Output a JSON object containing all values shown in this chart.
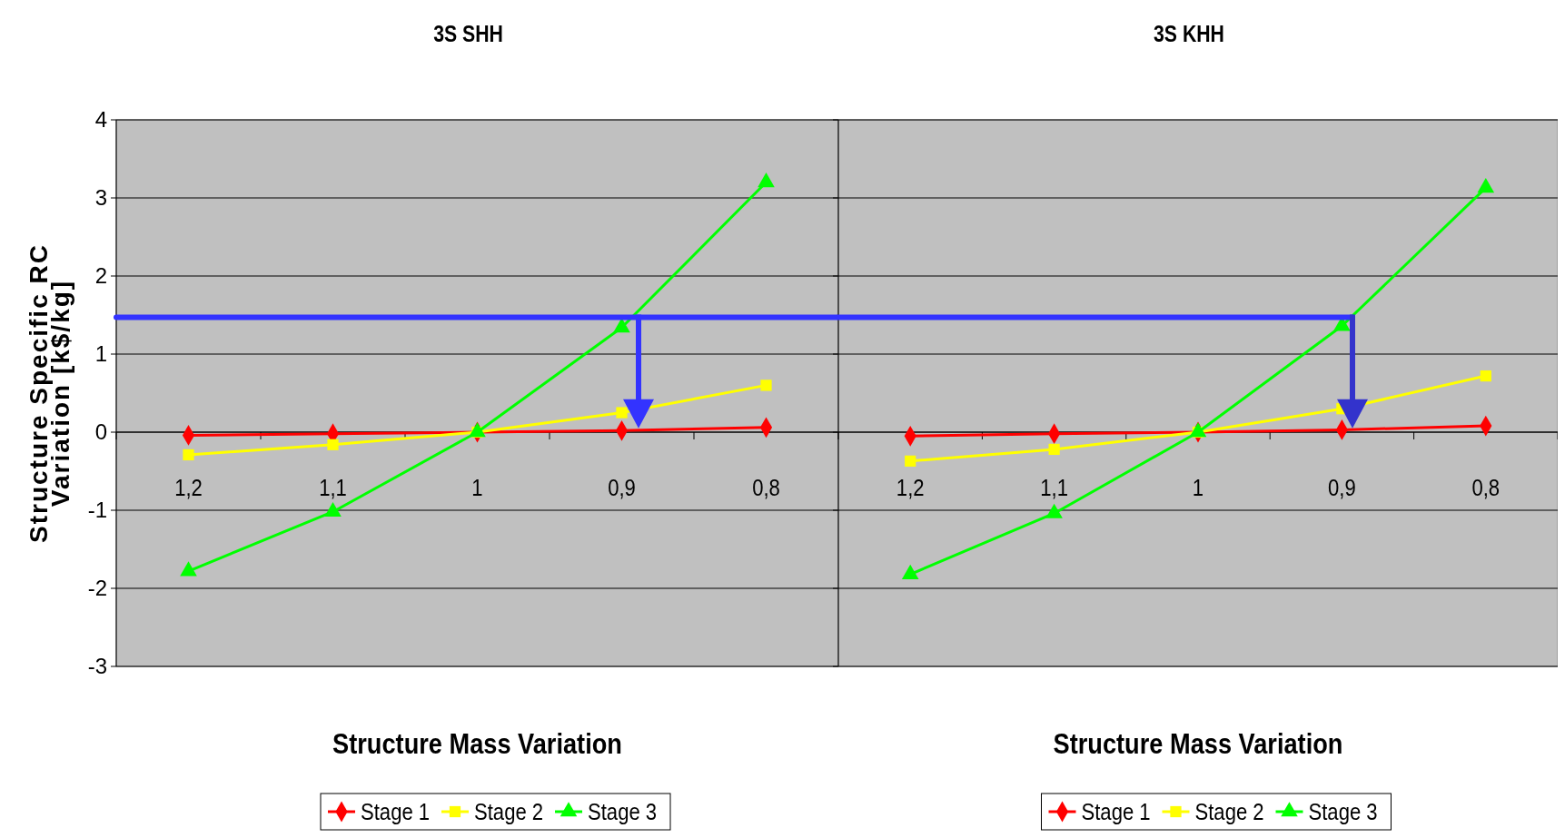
{
  "chart_data": [
    {
      "type": "line",
      "title": "3S SHH",
      "xlabel": "Structure Mass Variation",
      "ylabel": "Structure Specific RC\nVariation  [k$/kg]",
      "categories": [
        "1,2",
        "1,1",
        "1",
        "0,9",
        "0,8"
      ],
      "series": [
        {
          "name": "Stage 1",
          "color": "#ff0000",
          "marker": "diamond",
          "values": [
            -0.04,
            -0.02,
            0,
            0.02,
            0.06
          ]
        },
        {
          "name": "Stage 2",
          "color": "#ffff00",
          "marker": "square",
          "values": [
            -0.29,
            -0.16,
            0,
            0.25,
            0.6
          ]
        },
        {
          "name": "Stage 3",
          "color": "#00ff00",
          "marker": "triangle",
          "values": [
            -1.78,
            -1.02,
            0,
            1.34,
            3.2
          ]
        }
      ],
      "ylim": [
        -3,
        4
      ],
      "yticks": [
        -3,
        -2,
        -1,
        0,
        1,
        2,
        3,
        4
      ],
      "grid": "y",
      "legend": "bottom",
      "ref_lines": [
        {
          "axis": "y",
          "value": 1.47,
          "color": "#3333ff"
        }
      ]
    },
    {
      "type": "line",
      "title": "3S KHH",
      "xlabel": "Structure Mass Variation",
      "categories": [
        "1,2",
        "1,1",
        "1",
        "0,9",
        "0,8"
      ],
      "series": [
        {
          "name": "Stage 1",
          "color": "#ff0000",
          "marker": "diamond",
          "values": [
            -0.05,
            -0.02,
            0,
            0.03,
            0.08
          ]
        },
        {
          "name": "Stage 2",
          "color": "#ffff00",
          "marker": "square",
          "values": [
            -0.37,
            -0.22,
            0,
            0.3,
            0.72
          ]
        },
        {
          "name": "Stage 3",
          "color": "#00ff00",
          "marker": "triangle",
          "values": [
            -1.82,
            -1.04,
            0,
            1.36,
            3.13
          ]
        }
      ],
      "ylim": [
        -3,
        4
      ],
      "yticks": [
        -3,
        -2,
        -1,
        0,
        1,
        2,
        3,
        4
      ],
      "grid": "y",
      "legend": "bottom",
      "tick_labels": "x",
      "ref_lines": [
        {
          "axis": "y",
          "value": 1.47,
          "color": "#3333ff"
        }
      ]
    }
  ]
}
